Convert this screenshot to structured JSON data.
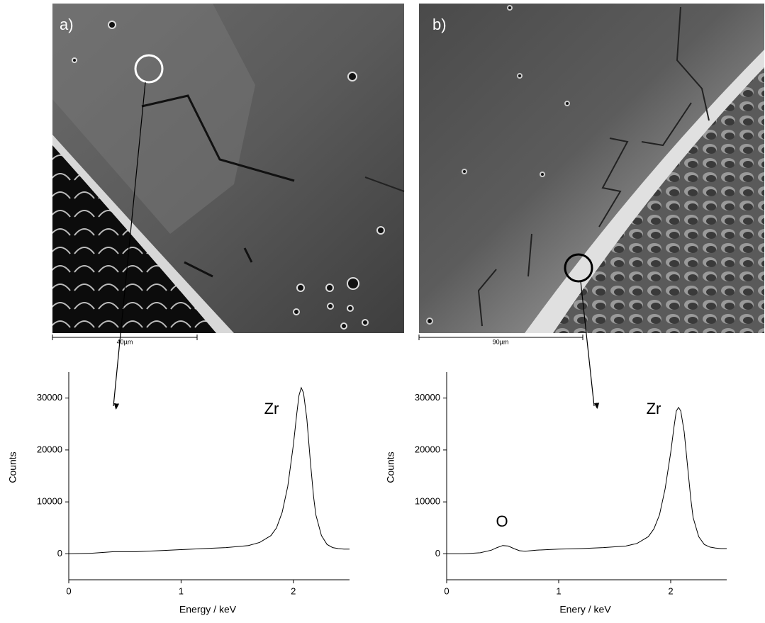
{
  "chart_data": [
    {
      "type": "line",
      "image": {
        "label": "a)",
        "scale_bar": "40µm"
      },
      "xlabel": "Energy / keV",
      "ylabel": "Counts",
      "x": [
        0,
        0.2,
        0.4,
        0.6,
        0.8,
        1.0,
        1.2,
        1.4,
        1.6,
        1.7,
        1.8,
        1.85,
        1.9,
        1.95,
        2.0,
        2.03,
        2.05,
        2.07,
        2.09,
        2.12,
        2.15,
        2.18,
        2.2,
        2.25,
        2.3,
        2.35,
        2.4,
        2.45,
        2.5
      ],
      "values": [
        0,
        100,
        400,
        400,
        600,
        800,
        1000,
        1200,
        1600,
        2200,
        3500,
        5000,
        8000,
        13000,
        21000,
        27000,
        30500,
        32000,
        31000,
        26000,
        18000,
        11000,
        7500,
        3500,
        1800,
        1200,
        1000,
        900,
        900
      ],
      "color": "#000000",
      "xlim": [
        0,
        2.5
      ],
      "xticks": [
        0,
        1,
        2
      ],
      "ylim": [
        -5000,
        35000
      ],
      "yticks": [
        0,
        10000,
        20000,
        30000
      ],
      "annotations": [
        "Zr"
      ]
    },
    {
      "type": "line",
      "image": {
        "label": "b)",
        "scale_bar": "90µm"
      },
      "xlabel": "Enery / keV",
      "ylabel": "Counts",
      "x": [
        0,
        0.15,
        0.3,
        0.4,
        0.45,
        0.5,
        0.55,
        0.6,
        0.65,
        0.7,
        0.8,
        1.0,
        1.2,
        1.4,
        1.6,
        1.7,
        1.8,
        1.85,
        1.9,
        1.95,
        2.0,
        2.03,
        2.05,
        2.07,
        2.09,
        2.12,
        2.15,
        2.18,
        2.2,
        2.25,
        2.3,
        2.35,
        2.4,
        2.45,
        2.5
      ],
      "values": [
        0,
        0,
        200,
        700,
        1200,
        1600,
        1500,
        1000,
        600,
        500,
        700,
        900,
        1000,
        1200,
        1500,
        2000,
        3300,
        4800,
        7500,
        12500,
        19500,
        24500,
        27500,
        28200,
        27500,
        23500,
        17000,
        10500,
        7000,
        3300,
        1800,
        1300,
        1100,
        1000,
        1000
      ],
      "color": "#000000",
      "xlim": [
        0,
        2.5
      ],
      "xticks": [
        0,
        1,
        2
      ],
      "ylim": [
        -5000,
        35000
      ],
      "yticks": [
        0,
        10000,
        20000,
        30000
      ],
      "annotations": [
        "O",
        "Zr"
      ]
    }
  ]
}
